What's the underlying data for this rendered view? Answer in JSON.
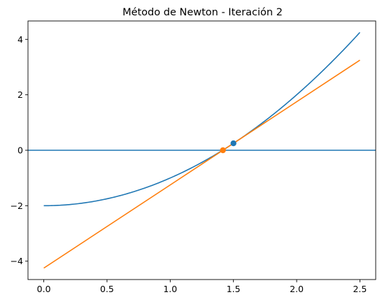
{
  "chart_data": {
    "type": "line",
    "title": "Método de Newton - Iteración 2",
    "xlabel": "",
    "ylabel": "",
    "xlim": [
      -0.125,
      2.625
    ],
    "ylim": [
      -4.6625,
      4.6625
    ],
    "xticks": [
      0.0,
      0.5,
      1.0,
      1.5,
      2.0,
      2.5
    ],
    "xtick_labels": [
      "0.0",
      "0.5",
      "1.0",
      "1.5",
      "2.0",
      "2.5"
    ],
    "yticks": [
      -4,
      -2,
      0,
      2,
      4
    ],
    "ytick_labels": [
      "−4",
      "−2",
      "0",
      "2",
      "4"
    ],
    "grid": false,
    "legend": "none",
    "series": [
      {
        "kind": "curve",
        "expression": "x^2 - 2",
        "x_range": [
          0.0,
          2.5
        ],
        "color": "#1f77b4"
      },
      {
        "kind": "hline",
        "y": 0,
        "color": "#1f77b4"
      },
      {
        "kind": "tangent",
        "x": [
          0.0,
          2.5
        ],
        "y": [
          -4.25,
          3.25
        ],
        "color": "#ff7f0e"
      }
    ],
    "points": [
      {
        "x": 1.5,
        "y": 0.25,
        "color": "#1f77b4"
      },
      {
        "x": 1.4167,
        "y": 0.0,
        "color": "#ff7f0e"
      }
    ]
  }
}
